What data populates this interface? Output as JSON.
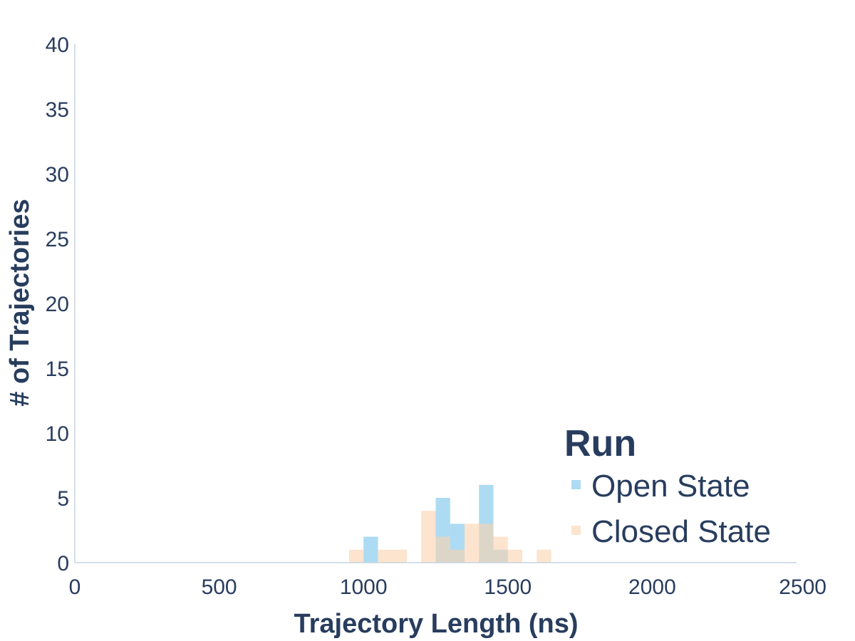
{
  "chart_data": {
    "type": "histogram",
    "title": "",
    "xlabel": "Trajectory Length (ns)",
    "ylabel": "# of Trajectories",
    "xlim": [
      0,
      2500
    ],
    "ylim": [
      0,
      40
    ],
    "x_ticks": [
      "0",
      "500",
      "1000",
      "1500",
      "2000",
      "2500"
    ],
    "y_ticks": [
      "0",
      "5",
      "10",
      "15",
      "20",
      "25",
      "30",
      "35",
      "40"
    ],
    "bin_width": 50,
    "grid": false,
    "legend": {
      "title": "Run",
      "position": "bottom-right"
    },
    "series": [
      {
        "name": "Open State",
        "color": "#8dcdee",
        "bins": [
          {
            "x0": 1000,
            "x1": 1050,
            "count": 2
          },
          {
            "x0": 1250,
            "x1": 1300,
            "count": 5
          },
          {
            "x0": 1300,
            "x1": 1350,
            "count": 3
          },
          {
            "x0": 1400,
            "x1": 1450,
            "count": 6
          },
          {
            "x0": 1450,
            "x1": 1500,
            "count": 1
          }
        ]
      },
      {
        "name": "Closed State",
        "color": "#fcd2ad",
        "bins": [
          {
            "x0": 950,
            "x1": 1000,
            "count": 1
          },
          {
            "x0": 1050,
            "x1": 1100,
            "count": 1
          },
          {
            "x0": 1100,
            "x1": 1150,
            "count": 1
          },
          {
            "x0": 1200,
            "x1": 1250,
            "count": 4
          },
          {
            "x0": 1250,
            "x1": 1300,
            "count": 2
          },
          {
            "x0": 1300,
            "x1": 1350,
            "count": 1
          },
          {
            "x0": 1350,
            "x1": 1400,
            "count": 3
          },
          {
            "x0": 1400,
            "x1": 1450,
            "count": 3
          },
          {
            "x0": 1450,
            "x1": 1500,
            "count": 2
          },
          {
            "x0": 1500,
            "x1": 1550,
            "count": 1
          },
          {
            "x0": 1600,
            "x1": 1650,
            "count": 1
          }
        ]
      }
    ]
  }
}
